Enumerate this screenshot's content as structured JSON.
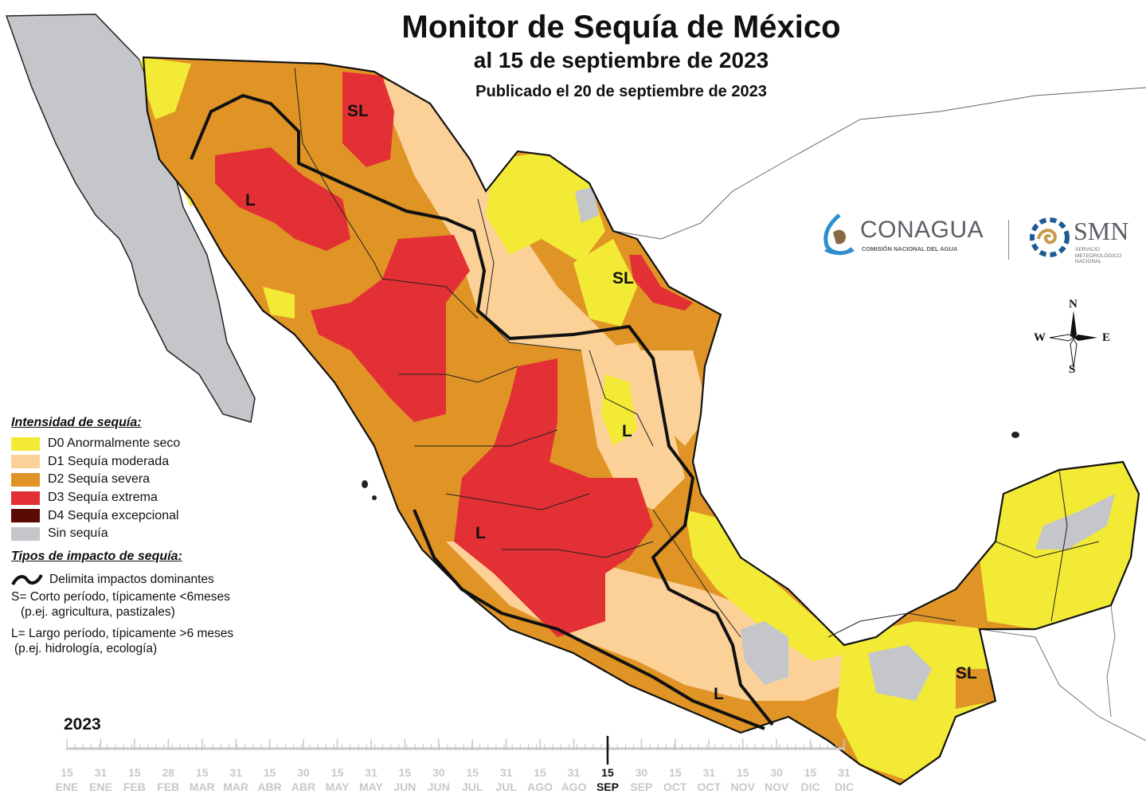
{
  "header": {
    "title": "Monitor de Sequía de México",
    "subtitle": "al 15 de septiembre de 2023",
    "published": "Publicado el 20 de septiembre de 2023"
  },
  "map_labels": [
    {
      "text": "SL",
      "category": "Corto y largo plazo"
    },
    {
      "text": "L",
      "category": "Largo plazo"
    },
    {
      "text": "SL",
      "category": "Corto y largo plazo"
    },
    {
      "text": "L",
      "category": "Largo plazo"
    },
    {
      "text": "L",
      "category": "Largo plazo"
    },
    {
      "text": "L",
      "category": "Largo plazo"
    },
    {
      "text": "SL",
      "category": "Corto y largo plazo"
    }
  ],
  "legend": {
    "heading": "Intensidad de sequía:",
    "items": [
      {
        "code": "D0",
        "label": "D0 Anormalmente seco",
        "color": "#f2ea35"
      },
      {
        "code": "D1",
        "label": "D1 Sequía moderada",
        "color": "#fcd198"
      },
      {
        "code": "D2",
        "label": "D2 Sequía severa",
        "color": "#e09426"
      },
      {
        "code": "D3",
        "label": "D3 Sequía extrema",
        "color": "#e33034"
      },
      {
        "code": "D4",
        "label": "D4 Sequía excepcional",
        "color": "#5c0a04"
      },
      {
        "code": "none",
        "label": "Sin sequía",
        "color": "#c4c6c9"
      }
    ]
  },
  "impacts": {
    "heading": "Tipos de impacto de sequía:",
    "line_label": "Delimita impactos dominantes",
    "s_line1": "S= Corto período, típicamente <6meses",
    "s_line2": "(p.ej. agricultura, pastizales)",
    "l_line1": "L= Largo período, típicamente >6 meses",
    "l_line2": "(p.ej. hidrología, ecología)"
  },
  "logos": {
    "conagua_name": "CONAGUA",
    "conagua_sub": "COMISIÓN NACIONAL DEL AGUA",
    "smn_name": "SMN",
    "smn_sub1": "SERVICIO",
    "smn_sub2": "METEOROLÓGICO",
    "smn_sub3": "NACIONAL"
  },
  "compass": {
    "n": "N",
    "s": "S",
    "e": "E",
    "w": "W"
  },
  "timeline": {
    "year": "2023",
    "current_index": 16,
    "ticks": [
      {
        "day": "15",
        "month": "ENE"
      },
      {
        "day": "31",
        "month": "ENE"
      },
      {
        "day": "15",
        "month": "FEB"
      },
      {
        "day": "28",
        "month": "FEB"
      },
      {
        "day": "15",
        "month": "MAR"
      },
      {
        "day": "31",
        "month": "MAR"
      },
      {
        "day": "15",
        "month": "ABR"
      },
      {
        "day": "30",
        "month": "ABR"
      },
      {
        "day": "15",
        "month": "MAY"
      },
      {
        "day": "31",
        "month": "MAY"
      },
      {
        "day": "15",
        "month": "JUN"
      },
      {
        "day": "30",
        "month": "JUN"
      },
      {
        "day": "15",
        "month": "JUL"
      },
      {
        "day": "31",
        "month": "JUL"
      },
      {
        "day": "15",
        "month": "AGO"
      },
      {
        "day": "31",
        "month": "AGO"
      },
      {
        "day": "15",
        "month": "SEP"
      },
      {
        "day": "30",
        "month": "SEP"
      },
      {
        "day": "15",
        "month": "OCT"
      },
      {
        "day": "31",
        "month": "OCT"
      },
      {
        "day": "15",
        "month": "NOV"
      },
      {
        "day": "30",
        "month": "NOV"
      },
      {
        "day": "15",
        "month": "DIC"
      },
      {
        "day": "31",
        "month": "DIC"
      }
    ]
  }
}
